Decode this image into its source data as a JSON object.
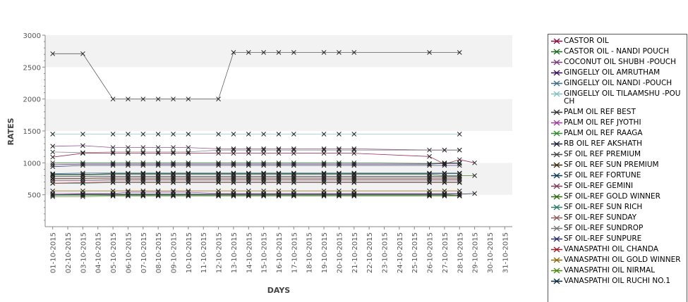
{
  "chart_data": {
    "type": "line",
    "xlabel": "DAYS",
    "ylabel": "RATES",
    "ylim": [
      0,
      3000
    ],
    "yticks": [
      500,
      1000,
      1500,
      2000,
      2500,
      3000
    ],
    "categories": [
      "01-10-2015",
      "02-10-2015",
      "03-10-2015",
      "04-10-2015",
      "05-10-2015",
      "06-10-2015",
      "07-10-2015",
      "08-10-2015",
      "09-10-2015",
      "10-10-2015",
      "11-10-2015",
      "12-10-2015",
      "13-10-2015",
      "14-10-2015",
      "15-10-2015",
      "16-10-2015",
      "17-10-2015",
      "18-10-2015",
      "19-10-2015",
      "20-10-2015",
      "21-10-2015",
      "22-10-2015",
      "23-10-2015",
      "24-10-2015",
      "25-10-2015",
      "26-10-2015",
      "27-10-2015",
      "28-10-2015",
      "29-10-2015",
      "30-10-2015",
      "31-10-2015"
    ],
    "grid": "alternating horizontal bands",
    "legend": "right",
    "series": [
      {
        "name": "CASTOR OIL",
        "color": "#8b0a3c",
        "values": [
          1090,
          null,
          1150,
          null,
          1150,
          1150,
          1150,
          1150,
          1150,
          1150,
          null,
          1150,
          1150,
          1150,
          1150,
          1150,
          1150,
          null,
          1150,
          1150,
          1150,
          null,
          null,
          null,
          null,
          1100,
          980,
          1050,
          1000,
          null,
          null
        ]
      },
      {
        "name": "CASTOR OIL - NANDI POUCH",
        "color": "#1a6b1a",
        "values": [
          1000,
          null,
          1000,
          null,
          1000,
          1000,
          1000,
          1000,
          1000,
          1000,
          null,
          1000,
          1000,
          1000,
          1000,
          1000,
          1000,
          null,
          1000,
          1000,
          1000,
          null,
          null,
          null,
          null,
          990,
          1000,
          1000,
          null,
          null,
          null
        ]
      },
      {
        "name": "COCONUT OIL SHUBH -POUCH",
        "color": "#7a3a7a",
        "values": [
          1260,
          null,
          1270,
          null,
          1240,
          1240,
          1240,
          1240,
          1240,
          1240,
          null,
          1220,
          1220,
          1220,
          1220,
          1220,
          1220,
          null,
          1220,
          1220,
          1220,
          null,
          null,
          null,
          null,
          1200,
          1200,
          1200,
          null,
          null,
          null
        ]
      },
      {
        "name": "GINGELLY OIL AMRUTHAM",
        "color": "#3a0a5a",
        "values": [
          970,
          null,
          980,
          null,
          980,
          980,
          980,
          980,
          980,
          980,
          null,
          980,
          980,
          980,
          980,
          980,
          980,
          null,
          980,
          980,
          980,
          null,
          null,
          null,
          null,
          980,
          990,
          990,
          null,
          null,
          null
        ]
      },
      {
        "name": "GINGELLY OIL NANDI -POUCH",
        "color": "#3a6a8a",
        "values": [
          830,
          null,
          840,
          null,
          840,
          840,
          840,
          840,
          840,
          840,
          null,
          840,
          840,
          840,
          840,
          840,
          840,
          null,
          840,
          840,
          840,
          null,
          null,
          null,
          null,
          840,
          840,
          840,
          null,
          null,
          null
        ]
      },
      {
        "name": "GINGELLY OIL TILAAMSHU -POUCH",
        "color": "#80c0c0",
        "values": [
          1450,
          null,
          1450,
          null,
          1450,
          1450,
          1450,
          1450,
          1450,
          1450,
          null,
          1450,
          1450,
          1450,
          1450,
          1450,
          1450,
          null,
          1450,
          1450,
          1450,
          null,
          null,
          null,
          null,
          null,
          null,
          1450,
          null,
          null,
          null
        ]
      },
      {
        "name": "PALM OIL REF BEST",
        "color": "#333333",
        "values": [
          500,
          null,
          500,
          null,
          500,
          500,
          500,
          500,
          500,
          500,
          null,
          500,
          500,
          500,
          500,
          500,
          500,
          null,
          500,
          500,
          500,
          null,
          null,
          null,
          null,
          500,
          500,
          490,
          null,
          null,
          null
        ]
      },
      {
        "name": "PALM OIL REF JYOTHI",
        "color": "#a03aa0",
        "values": [
          520,
          null,
          520,
          null,
          520,
          540,
          540,
          540,
          540,
          540,
          null,
          520,
          520,
          520,
          520,
          520,
          520,
          null,
          520,
          520,
          520,
          null,
          null,
          null,
          null,
          520,
          520,
          520,
          null,
          null,
          null
        ]
      },
      {
        "name": "PALM OIL REF RAAGA",
        "color": "#2a8a2a",
        "values": [
          490,
          null,
          490,
          null,
          490,
          490,
          490,
          490,
          490,
          490,
          null,
          490,
          490,
          490,
          490,
          490,
          490,
          null,
          490,
          490,
          490,
          null,
          null,
          null,
          null,
          490,
          490,
          490,
          null,
          null,
          null
        ]
      },
      {
        "name": "RB OIL REF AKSHATH",
        "color": "#1a1a3a",
        "values": [
          790,
          null,
          790,
          null,
          790,
          790,
          790,
          790,
          790,
          790,
          null,
          790,
          790,
          790,
          790,
          790,
          790,
          null,
          790,
          790,
          790,
          null,
          null,
          null,
          null,
          790,
          790,
          790,
          null,
          null,
          null
        ]
      },
      {
        "name": "SF OIL REF PREMIUM",
        "color": "#444444",
        "values": [
          2710,
          null,
          2710,
          null,
          2000,
          2000,
          2000,
          2000,
          2000,
          2000,
          null,
          2000,
          2730,
          2730,
          2730,
          2730,
          2730,
          null,
          2730,
          2730,
          2730,
          null,
          null,
          null,
          null,
          2730,
          null,
          2730,
          null,
          null,
          null
        ]
      },
      {
        "name": "SF OIL REF SUN PREMIUM",
        "color": "#3a2a0a",
        "values": [
          750,
          null,
          750,
          null,
          750,
          750,
          750,
          750,
          750,
          750,
          null,
          750,
          750,
          750,
          750,
          750,
          750,
          null,
          750,
          750,
          750,
          null,
          null,
          null,
          null,
          750,
          750,
          750,
          null,
          null,
          null
        ]
      },
      {
        "name": "SF OIL REF FORTUNE",
        "color": "#0a3a5a",
        "values": [
          820,
          null,
          820,
          null,
          830,
          830,
          830,
          830,
          830,
          830,
          null,
          830,
          830,
          830,
          830,
          830,
          830,
          null,
          830,
          830,
          830,
          null,
          null,
          null,
          null,
          830,
          830,
          830,
          null,
          null,
          null
        ]
      },
      {
        "name": "SF OIL-REF GEMINI",
        "color": "#7a3a5a",
        "values": [
          720,
          null,
          720,
          null,
          730,
          730,
          730,
          730,
          730,
          730,
          null,
          730,
          730,
          730,
          730,
          730,
          730,
          null,
          730,
          730,
          730,
          null,
          null,
          null,
          null,
          730,
          730,
          730,
          null,
          null,
          null
        ]
      },
      {
        "name": "SF OIL-REF GOLD WINNER",
        "color": "#2a6a0a",
        "values": [
          810,
          null,
          810,
          null,
          820,
          820,
          820,
          820,
          820,
          820,
          null,
          820,
          820,
          820,
          820,
          820,
          820,
          null,
          820,
          820,
          820,
          null,
          null,
          null,
          null,
          820,
          800,
          800,
          800,
          null,
          null
        ]
      },
      {
        "name": "SF OIL-REF SUN RICH",
        "color": "#2a7a6a",
        "values": [
          680,
          null,
          680,
          null,
          690,
          690,
          690,
          690,
          690,
          690,
          null,
          690,
          690,
          690,
          690,
          690,
          690,
          null,
          690,
          690,
          690,
          null,
          null,
          null,
          null,
          690,
          690,
          690,
          null,
          null,
          null
        ]
      },
      {
        "name": "SF OIL-REF SUNDAY",
        "color": "#8a5a5a",
        "values": [
          760,
          null,
          760,
          null,
          770,
          770,
          770,
          770,
          770,
          770,
          null,
          770,
          770,
          770,
          770,
          770,
          770,
          null,
          770,
          770,
          770,
          null,
          null,
          null,
          null,
          770,
          770,
          770,
          null,
          null,
          null
        ]
      },
      {
        "name": "SF OIL-REF SUNDROP",
        "color": "#777777",
        "values": [
          1170,
          null,
          1160,
          null,
          1170,
          1170,
          1170,
          1170,
          1170,
          1170,
          null,
          1200,
          1200,
          1200,
          1200,
          1200,
          1200,
          null,
          1200,
          1200,
          1200,
          null,
          null,
          null,
          null,
          null,
          1200,
          1200,
          null,
          null,
          null
        ]
      },
      {
        "name": "SF OIL-REF SUNPURE",
        "color": "#2a2a6a",
        "values": [
          940,
          null,
          960,
          null,
          960,
          960,
          960,
          960,
          960,
          960,
          null,
          960,
          960,
          960,
          960,
          960,
          960,
          null,
          960,
          960,
          960,
          null,
          null,
          null,
          null,
          960,
          960,
          960,
          null,
          null,
          null
        ]
      },
      {
        "name": "VANASPATHI OIL CHANDA",
        "color": "#a01a2a",
        "values": [
          680,
          null,
          690,
          null,
          700,
          700,
          700,
          700,
          700,
          700,
          null,
          700,
          700,
          700,
          700,
          700,
          700,
          null,
          700,
          700,
          700,
          null,
          null,
          null,
          null,
          700,
          700,
          700,
          null,
          null,
          null
        ]
      },
      {
        "name": "VANASPATHI OIL GOLD WINNER",
        "color": "#8a6a0a",
        "values": [
          560,
          null,
          560,
          null,
          560,
          560,
          560,
          560,
          560,
          560,
          null,
          560,
          560,
          560,
          560,
          560,
          560,
          null,
          560,
          560,
          560,
          null,
          null,
          null,
          null,
          560,
          560,
          560,
          null,
          null,
          null
        ]
      },
      {
        "name": "VANASPATHI OIL NIRMAL",
        "color": "#4a8a0a",
        "values": [
          470,
          null,
          470,
          null,
          480,
          480,
          480,
          480,
          480,
          480,
          null,
          480,
          480,
          480,
          480,
          480,
          480,
          null,
          480,
          480,
          480,
          null,
          null,
          null,
          null,
          480,
          480,
          480,
          null,
          null,
          null
        ]
      },
      {
        "name": "VANASPATHI OIL RUCHI NO.1",
        "color": "#0a2a3a",
        "values": [
          500,
          null,
          510,
          null,
          510,
          510,
          510,
          510,
          510,
          510,
          null,
          510,
          510,
          510,
          510,
          510,
          510,
          null,
          510,
          510,
          510,
          null,
          null,
          null,
          null,
          510,
          510,
          510,
          520,
          null,
          null
        ]
      }
    ]
  }
}
